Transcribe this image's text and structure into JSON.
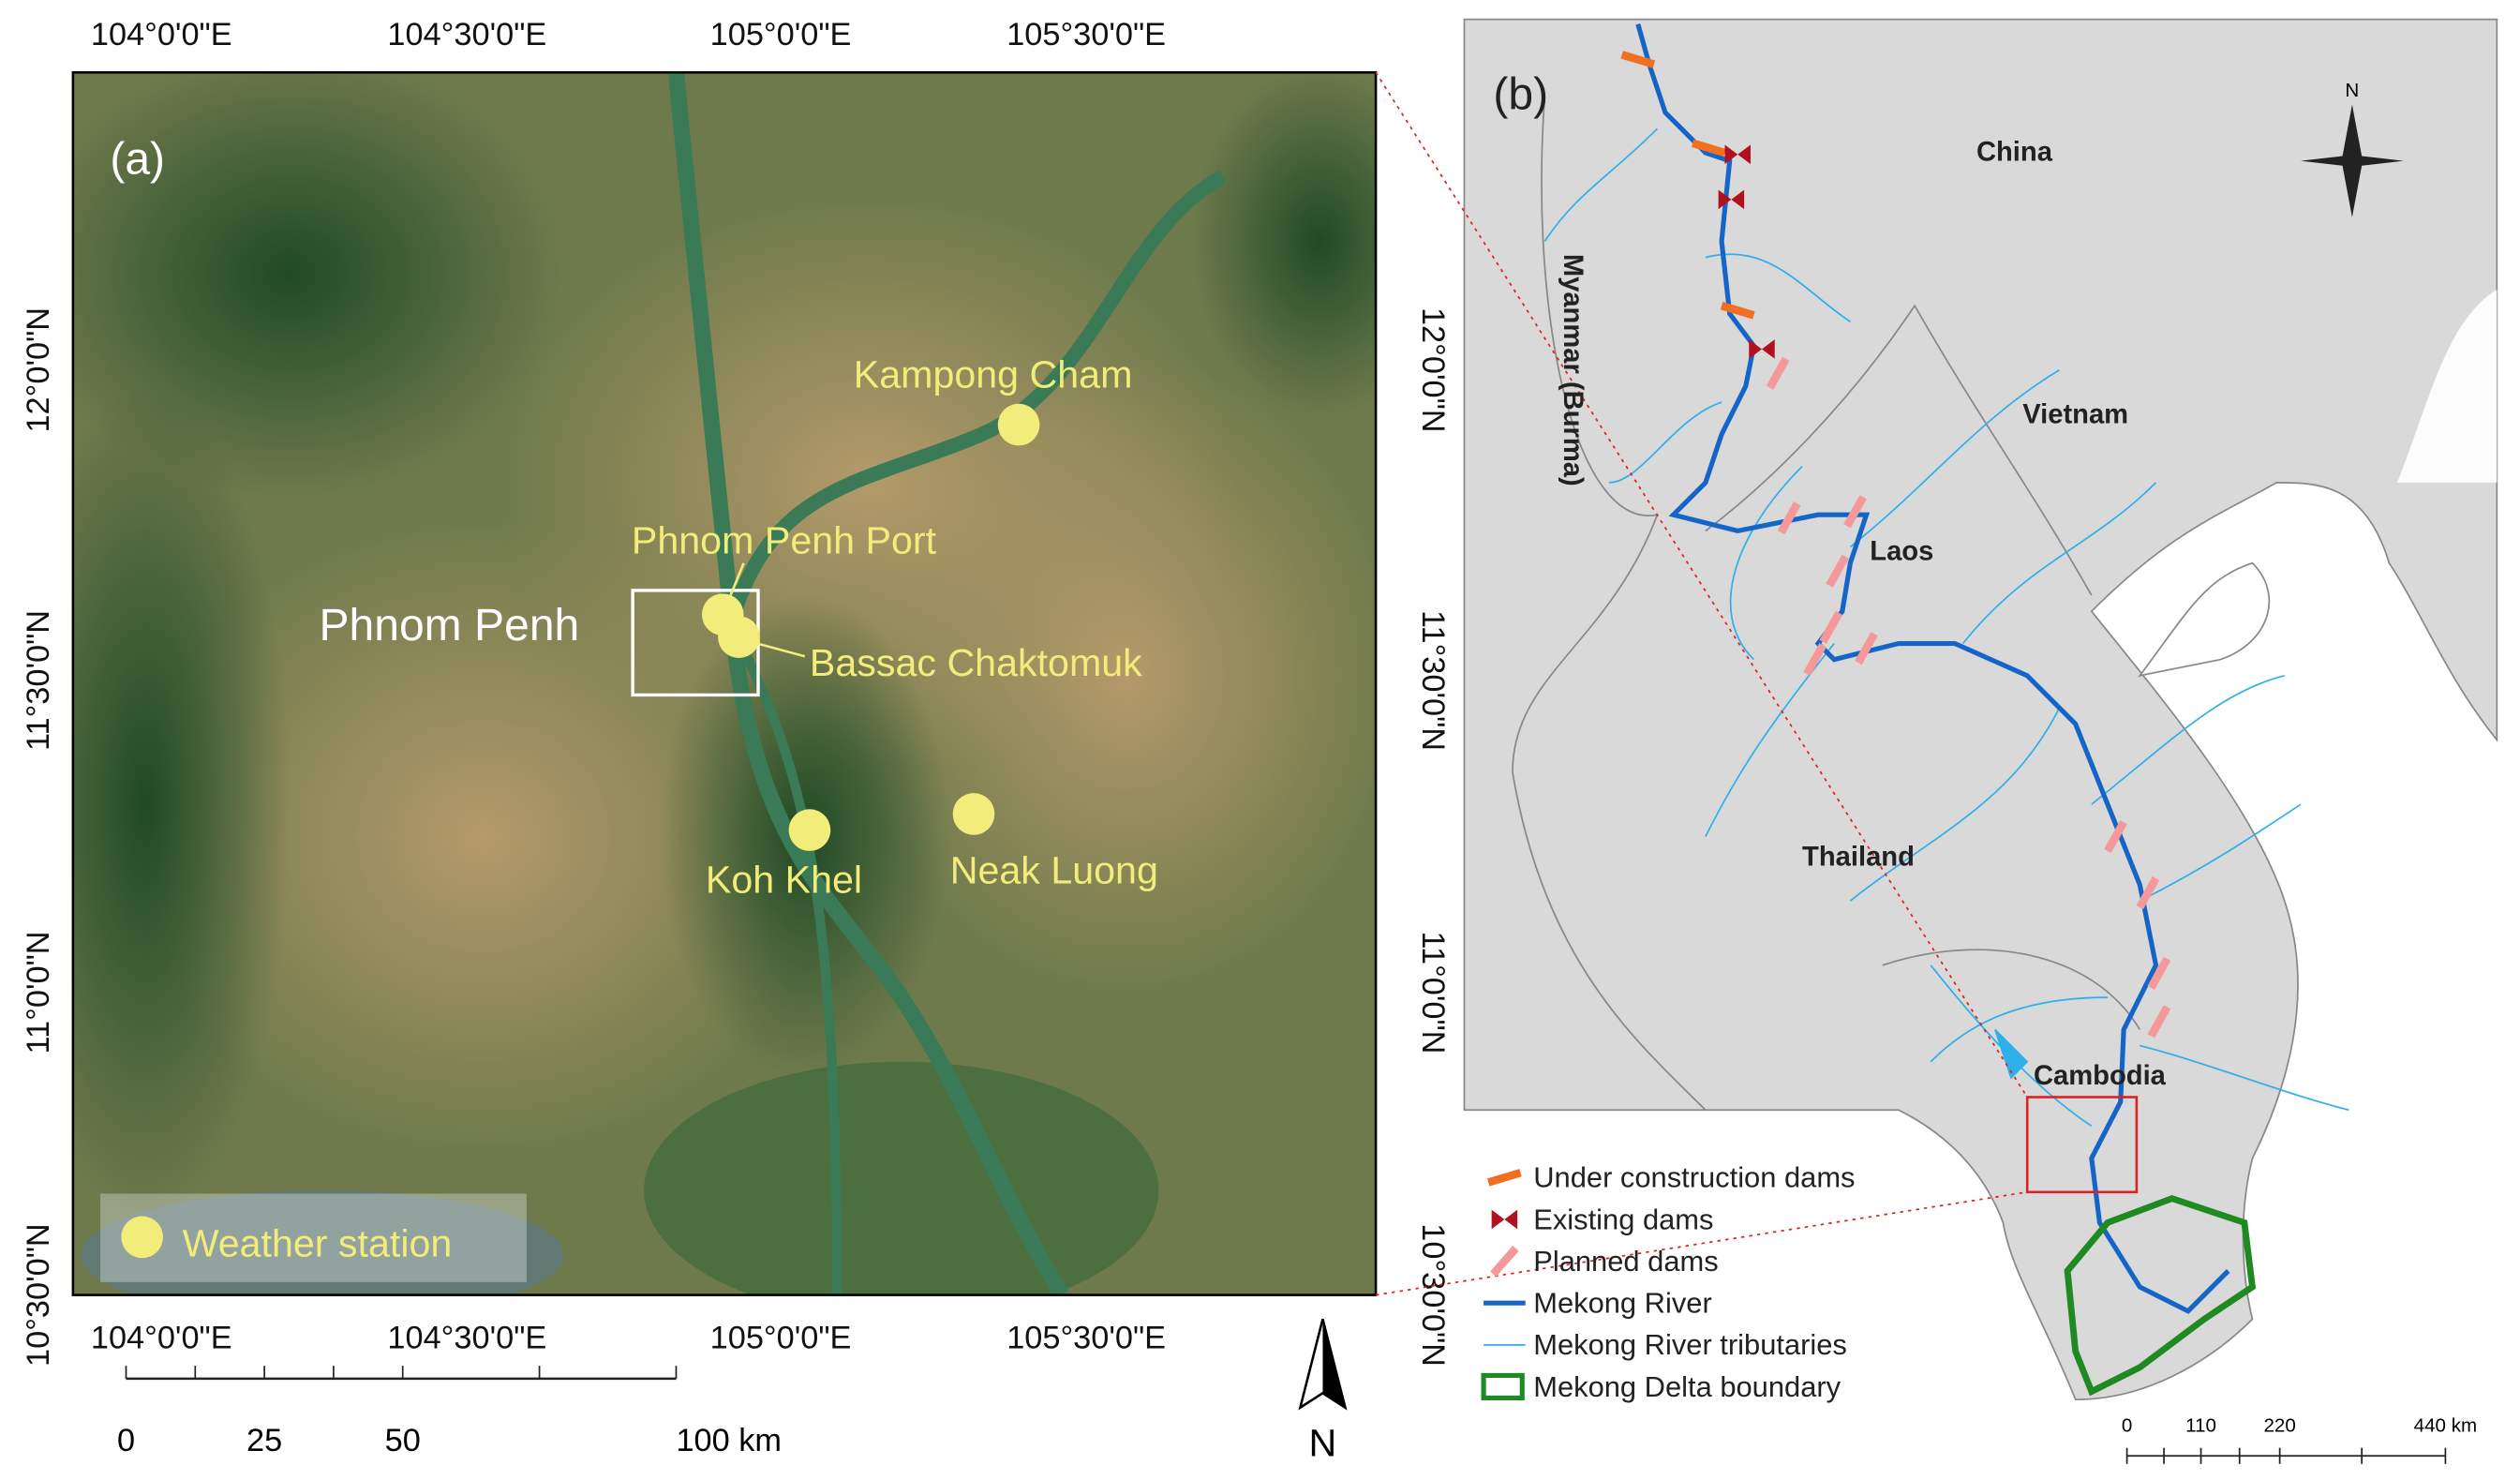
{
  "panel_a": {
    "label": "(a)",
    "city_label": "Phnom Penh",
    "stations": [
      "Kampong Cham",
      "Phnom Penh Port",
      "Bassac Chaktomuk",
      "Koh Khel",
      "Neak Luong"
    ],
    "legend": "Weather station",
    "lon_ticks": [
      "104°0'0\"E",
      "104°30'0\"E",
      "105°0'0\"E",
      "105°30'0\"E"
    ],
    "lat_ticks": [
      "12°0'0\"N",
      "11°30'0\"N",
      "11°0'0\"N",
      "10°30'0\"N"
    ],
    "scale_bar": [
      "0",
      "25",
      "50",
      "100 km"
    ],
    "north": "N"
  },
  "panel_b": {
    "label": "(b)",
    "countries": [
      "China",
      "Vietnam",
      "Myanmar (Burma)",
      "Laos",
      "Thailand",
      "Cambodia"
    ],
    "legend": [
      "Under construction dams",
      "Existing dams",
      "Planned dams",
      "Mekong River",
      "Mekong River tributaries",
      "Mekong Delta boundary"
    ],
    "scale_bar": [
      "0",
      "110",
      "220",
      "440 km"
    ],
    "north": "N"
  }
}
